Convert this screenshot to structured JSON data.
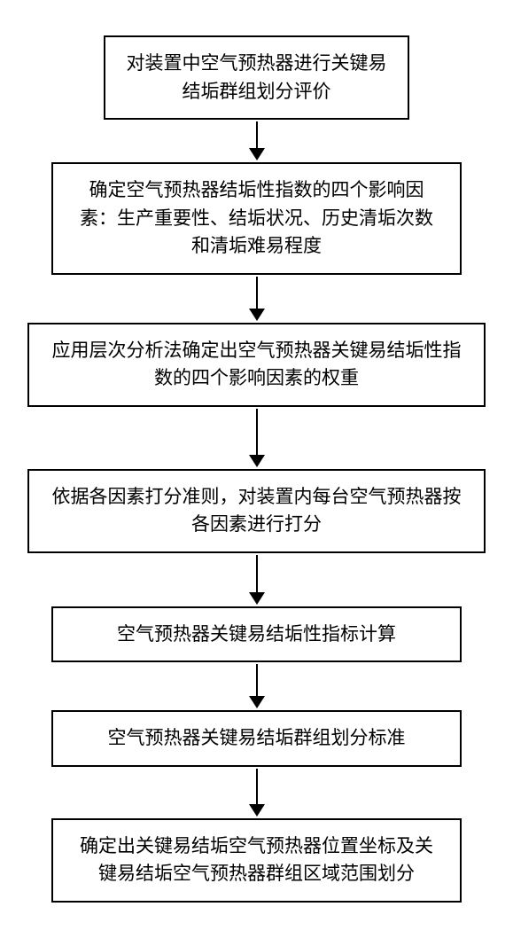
{
  "flowchart": {
    "type": "flowchart",
    "direction": "vertical",
    "background_color": "#ffffff",
    "border_color": "#000000",
    "border_width": 2,
    "text_color": "#000000",
    "font_size": 21,
    "font_family": "SimSun",
    "arrow_color": "#000000",
    "steps": [
      {
        "id": "step1",
        "text": "对装置中空气预热器进行关键易结垢群组划分评价",
        "width": "narrow",
        "arrow_height": 30
      },
      {
        "id": "step2",
        "text": "确定空气预热器结垢性指数的四个影响因素：生产重要性、结垢状况、历史清垢次数和清垢难易程度",
        "width": "medium",
        "arrow_height": 36
      },
      {
        "id": "step3",
        "text": "应用层次分析法确定出空气预热器关键易结垢性指数的四个影响因素的权重",
        "width": "wide",
        "arrow_height": 52
      },
      {
        "id": "step4",
        "text": "依据各因素打分准则，对装置内每台空气预热器按各因素进行打分",
        "width": "wide",
        "arrow_height": 42
      },
      {
        "id": "step5",
        "text": "空气预热器关键易结垢性指标计算",
        "width": "medium",
        "arrow_height": 36
      },
      {
        "id": "step6",
        "text": "空气预热器关键易结垢群组划分标准",
        "width": "medium",
        "arrow_height": 40
      },
      {
        "id": "step7",
        "text": "确定出关键易结垢空气预热器位置坐标及关键易结垢空气预热器群组区域范围划分",
        "width": "medium",
        "arrow_height": 0
      }
    ]
  }
}
